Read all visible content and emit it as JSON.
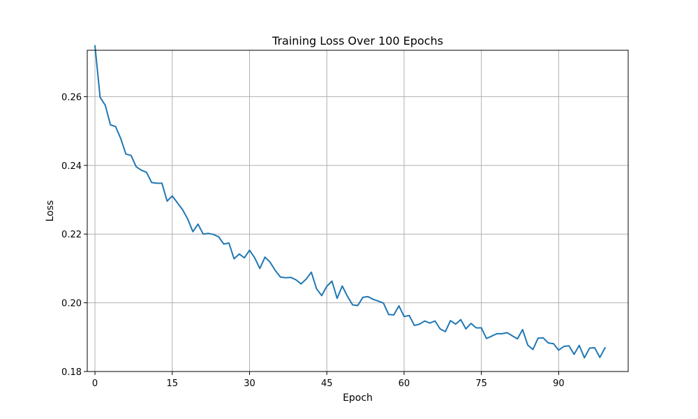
{
  "chart_data": {
    "type": "line",
    "title": "Training Loss Over 100 Epochs",
    "xlabel": "Epoch",
    "ylabel": "Loss",
    "xlim": [
      -1.5,
      103.5
    ],
    "ylim": [
      0.18,
      0.2735
    ],
    "x_ticks": [
      0,
      15,
      30,
      45,
      60,
      75,
      90
    ],
    "x_tick_labels": [
      "0",
      "15",
      "30",
      "45",
      "60",
      "75",
      "90"
    ],
    "y_ticks": [
      0.18,
      0.2,
      0.22,
      0.24,
      0.26
    ],
    "y_tick_labels": [
      "0.18",
      "0.20",
      "0.22",
      "0.24",
      "0.26"
    ],
    "grid": true,
    "line_color": "#1f77b4",
    "series": [
      {
        "name": "Training Loss",
        "x": [
          0,
          1,
          2,
          3,
          4,
          5,
          6,
          7,
          8,
          9,
          10,
          11,
          12,
          13,
          14,
          15,
          16,
          17,
          18,
          19,
          20,
          21,
          22,
          23,
          24,
          25,
          26,
          27,
          28,
          29,
          30,
          31,
          32,
          33,
          34,
          35,
          36,
          37,
          38,
          39,
          40,
          41,
          42,
          43,
          44,
          45,
          46,
          47,
          48,
          49,
          50,
          51,
          52,
          53,
          54,
          55,
          56,
          57,
          58,
          59,
          60,
          61,
          62,
          63,
          64,
          65,
          66,
          67,
          68,
          69,
          70,
          71,
          72,
          73,
          74,
          75,
          76,
          77,
          78,
          79,
          80,
          81,
          82,
          83,
          84,
          85,
          86,
          87,
          88,
          89,
          90,
          91,
          92,
          93,
          94,
          95,
          96,
          97,
          98,
          99
        ],
        "values": [
          0.2748,
          0.2598,
          0.2575,
          0.2518,
          0.2513,
          0.2478,
          0.2433,
          0.2429,
          0.2396,
          0.2386,
          0.238,
          0.235,
          0.2348,
          0.2348,
          0.2296,
          0.2311,
          0.2291,
          0.2271,
          0.2244,
          0.2207,
          0.2229,
          0.22,
          0.2202,
          0.2199,
          0.2192,
          0.2171,
          0.2174,
          0.2128,
          0.2142,
          0.2131,
          0.2153,
          0.2131,
          0.21,
          0.2133,
          0.2118,
          0.2094,
          0.2075,
          0.2073,
          0.2074,
          0.2067,
          0.2055,
          0.2069,
          0.2089,
          0.2041,
          0.2021,
          0.2048,
          0.2063,
          0.2013,
          0.2049,
          0.2019,
          0.1994,
          0.1992,
          0.2016,
          0.2018,
          0.201,
          0.2005,
          0.1999,
          0.1966,
          0.1965,
          0.1991,
          0.196,
          0.1963,
          0.1934,
          0.1938,
          0.1947,
          0.1941,
          0.1947,
          0.1924,
          0.1916,
          0.1948,
          0.1938,
          0.1951,
          0.1924,
          0.194,
          0.1927,
          0.1927,
          0.1896,
          0.1903,
          0.191,
          0.191,
          0.1913,
          0.1904,
          0.1895,
          0.1922,
          0.1877,
          0.1864,
          0.1897,
          0.1898,
          0.1883,
          0.1881,
          0.1862,
          0.1873,
          0.1875,
          0.185,
          0.1876,
          0.184,
          0.1868,
          0.1869,
          0.1841,
          0.1869
        ]
      }
    ]
  }
}
